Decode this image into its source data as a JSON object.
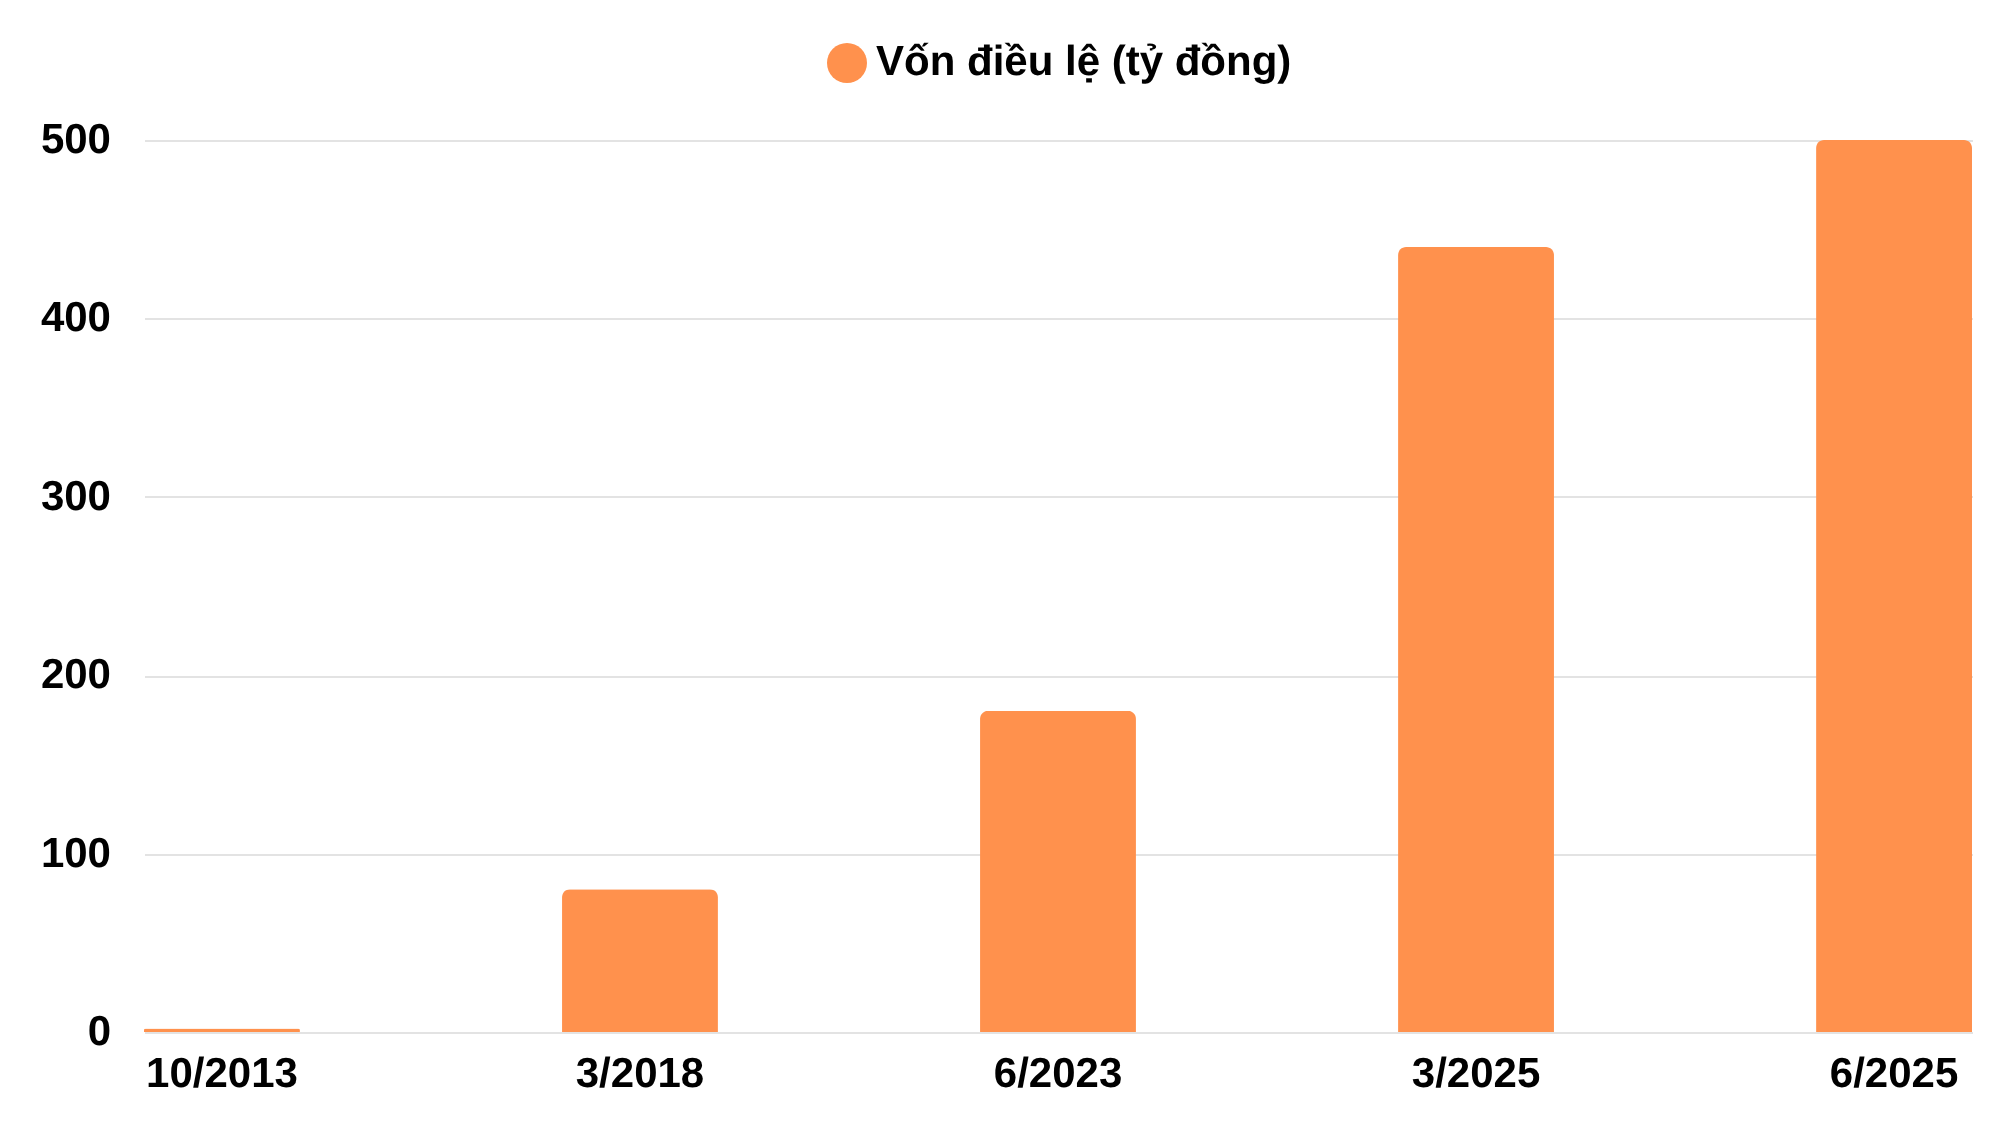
{
  "chart_data": {
    "type": "bar",
    "categories": [
      "10/2013",
      "3/2018",
      "6/2023",
      "3/2025",
      "6/2025"
    ],
    "series": [
      {
        "name": "Vốn điều lệ (tỷ đồng)",
        "color": "#ff914d",
        "values": [
          2,
          80,
          180,
          440,
          500
        ]
      }
    ],
    "ylim": [
      0,
      500
    ],
    "yticks": [
      0,
      100,
      200,
      300,
      400,
      500
    ],
    "grid": "y",
    "legend": "top"
  }
}
